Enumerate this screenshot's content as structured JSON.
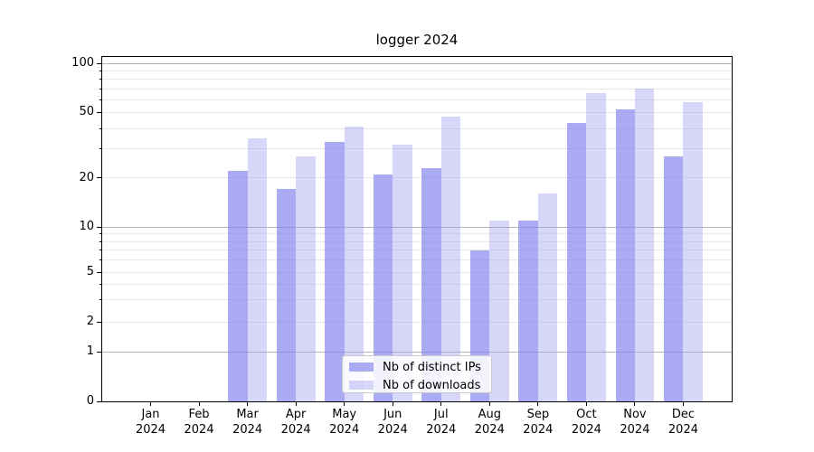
{
  "chart_data": {
    "type": "bar",
    "title": "logger 2024",
    "categories": [
      "Jan",
      "Feb",
      "Mar",
      "Apr",
      "May",
      "Jun",
      "Jul",
      "Aug",
      "Sep",
      "Oct",
      "Nov",
      "Dec"
    ],
    "year_label": "2024",
    "series": [
      {
        "name": "Nb of distinct IPs",
        "color": "rgba(136,136,240,0.70)",
        "values": [
          0,
          0,
          22,
          17,
          33,
          21,
          23,
          7,
          11,
          43,
          52,
          27
        ]
      },
      {
        "name": "Nb of downloads",
        "color": "rgba(160,160,242,0.42)",
        "values": [
          0,
          0,
          35,
          27,
          41,
          32,
          47,
          11,
          16,
          66,
          70,
          58
        ]
      }
    ],
    "xlabel": "",
    "ylabel": "",
    "yscale": "symlog",
    "ylim": [
      0,
      110
    ],
    "y_tick_labels": [
      0,
      1,
      2,
      5,
      10,
      20,
      50,
      100
    ],
    "y_minor_values": [
      2,
      3,
      4,
      5,
      6,
      7,
      8,
      9,
      20,
      30,
      40,
      50,
      60,
      70,
      80,
      90
    ],
    "y_major_gridline_values": [
      1,
      10,
      100
    ],
    "grid": true,
    "legend_position": "lower center",
    "colors": {
      "background": "#ffffff",
      "bar_distinct_ips_solid": "#abaaf3",
      "bar_downloads_solid": "#d7d7f9",
      "gridline_major": "#b3b3b3",
      "gridline_minor": "#e8e8e8",
      "axis": "#000000"
    }
  }
}
